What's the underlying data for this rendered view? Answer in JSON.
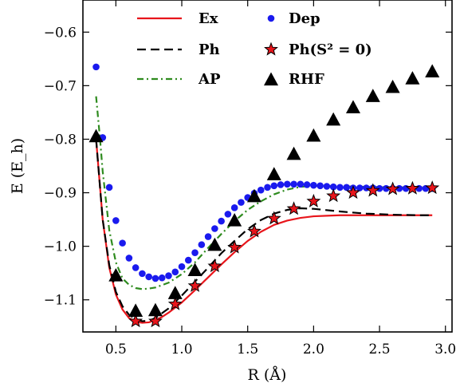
{
  "chart_data": {
    "type": "line",
    "xlabel": "R (Å)",
    "ylabel": "E (E_h)",
    "xlim": [
      0.25,
      3.05
    ],
    "ylim": [
      -1.16,
      -0.54
    ],
    "xticks": [
      "0.5",
      "1.0",
      "1.5",
      "2.0",
      "2.5",
      "3.0"
    ],
    "yticks": [
      "−0.6",
      "−0.7",
      "−0.8",
      "−0.9",
      "−1.0",
      "−1.1"
    ],
    "legend_position": "top",
    "series": [
      {
        "name": "Ex",
        "style": "solid-line",
        "color": "#e8151b",
        "x": [
          0.35,
          0.4,
          0.45,
          0.5,
          0.55,
          0.6,
          0.65,
          0.7,
          0.75,
          0.8,
          0.85,
          0.9,
          1.0,
          1.1,
          1.2,
          1.3,
          1.4,
          1.5,
          1.6,
          1.7,
          1.8,
          1.9,
          2.0,
          2.1,
          2.2,
          2.3,
          2.4,
          2.5,
          2.6,
          2.7,
          2.8,
          2.9
        ],
        "y": [
          -0.8,
          -0.95,
          -1.04,
          -1.09,
          -1.118,
          -1.134,
          -1.141,
          -1.143,
          -1.142,
          -1.138,
          -1.132,
          -1.124,
          -1.105,
          -1.082,
          -1.058,
          -1.034,
          -1.011,
          -0.99,
          -0.973,
          -0.96,
          -0.952,
          -0.947,
          -0.944,
          -0.943,
          -0.942,
          -0.942,
          -0.942,
          -0.942,
          -0.942,
          -0.942,
          -0.942,
          -0.942
        ]
      },
      {
        "name": "Ph",
        "style": "dashed-line",
        "color": "#000000",
        "x": [
          0.35,
          0.4,
          0.45,
          0.5,
          0.55,
          0.6,
          0.65,
          0.7,
          0.75,
          0.8,
          0.9,
          1.0,
          1.1,
          1.2,
          1.3,
          1.4,
          1.5,
          1.6,
          1.7,
          1.8,
          1.9,
          2.0,
          2.2,
          2.4,
          2.6,
          2.8,
          2.9
        ],
        "y": [
          -0.8,
          -0.95,
          -1.035,
          -1.085,
          -1.112,
          -1.128,
          -1.136,
          -1.14,
          -1.139,
          -1.134,
          -1.116,
          -1.092,
          -1.066,
          -1.04,
          -1.013,
          -0.99,
          -0.968,
          -0.951,
          -0.939,
          -0.932,
          -0.929,
          -0.93,
          -0.935,
          -0.939,
          -0.941,
          -0.942,
          -0.942
        ]
      },
      {
        "name": "AP",
        "style": "dashdot-line",
        "color": "#2e8b1e",
        "x": [
          0.35,
          0.38,
          0.4,
          0.45,
          0.5,
          0.55,
          0.6,
          0.65,
          0.7,
          0.75,
          0.8,
          0.9,
          1.0,
          1.1,
          1.2,
          1.3,
          1.4,
          1.5,
          1.6,
          1.7,
          1.8,
          1.9,
          2.0,
          2.2,
          2.4,
          2.6,
          2.8,
          2.9
        ],
        "y": [
          -0.72,
          -0.8,
          -0.86,
          -0.97,
          -1.03,
          -1.06,
          -1.072,
          -1.078,
          -1.08,
          -1.079,
          -1.077,
          -1.068,
          -1.052,
          -1.03,
          -1.003,
          -0.977,
          -0.953,
          -0.932,
          -0.916,
          -0.903,
          -0.894,
          -0.889,
          -0.887,
          -0.888,
          -0.889,
          -0.89,
          -0.89,
          -0.89
        ]
      },
      {
        "name": "Dep",
        "style": "circle-markers",
        "color": "#1a1aee",
        "x": [
          0.35,
          0.4,
          0.45,
          0.5,
          0.55,
          0.6,
          0.65,
          0.7,
          0.75,
          0.8,
          0.85,
          0.9,
          0.95,
          1.0,
          1.05,
          1.1,
          1.15,
          1.2,
          1.25,
          1.3,
          1.35,
          1.4,
          1.45,
          1.5,
          1.55,
          1.6,
          1.65,
          1.7,
          1.75,
          1.8,
          1.85,
          1.9,
          1.95,
          2.0,
          2.05,
          2.1,
          2.15,
          2.2,
          2.25,
          2.3,
          2.35,
          2.4,
          2.45,
          2.5,
          2.55,
          2.6,
          2.65,
          2.7,
          2.75,
          2.8,
          2.85,
          2.9
        ],
        "y": [
          -0.665,
          -0.797,
          -0.89,
          -0.952,
          -0.994,
          -1.022,
          -1.04,
          -1.051,
          -1.057,
          -1.06,
          -1.059,
          -1.055,
          -1.048,
          -1.038,
          -1.026,
          -1.012,
          -0.997,
          -0.982,
          -0.967,
          -0.953,
          -0.94,
          -0.928,
          -0.918,
          -0.909,
          -0.901,
          -0.895,
          -0.89,
          -0.887,
          -0.885,
          -0.884,
          -0.884,
          -0.884,
          -0.885,
          -0.886,
          -0.887,
          -0.888,
          -0.889,
          -0.89,
          -0.89,
          -0.891,
          -0.891,
          -0.891,
          -0.891,
          -0.892,
          -0.892,
          -0.892,
          -0.892,
          -0.892,
          -0.892,
          -0.892,
          -0.892,
          -0.892
        ]
      },
      {
        "name": "Ph(S² = 0)",
        "style": "star-markers",
        "color": "#e8151b",
        "x": [
          0.65,
          0.8,
          0.95,
          1.1,
          1.25,
          1.4,
          1.55,
          1.7,
          1.85,
          2.0,
          2.15,
          2.3,
          2.45,
          2.6,
          2.75,
          2.9
        ],
        "y": [
          -1.14,
          -1.14,
          -1.108,
          -1.074,
          -1.037,
          -1.002,
          -0.972,
          -0.948,
          -0.93,
          -0.916,
          -0.906,
          -0.9,
          -0.896,
          -0.893,
          -0.892,
          -0.891
        ]
      },
      {
        "name": "RHF",
        "style": "triangle-markers",
        "color": "#000000",
        "x": [
          0.35,
          0.5,
          0.65,
          0.8,
          0.95,
          1.1,
          1.25,
          1.4,
          1.55,
          1.7,
          1.85,
          2.0,
          2.15,
          2.3,
          2.45,
          2.6,
          2.75,
          2.9
        ],
        "y": [
          -0.795,
          -1.055,
          -1.121,
          -1.12,
          -1.088,
          -1.045,
          -0.998,
          -0.952,
          -0.907,
          -0.866,
          -0.828,
          -0.794,
          -0.764,
          -0.741,
          -0.72,
          -0.703,
          -0.687,
          -0.674
        ]
      }
    ]
  }
}
